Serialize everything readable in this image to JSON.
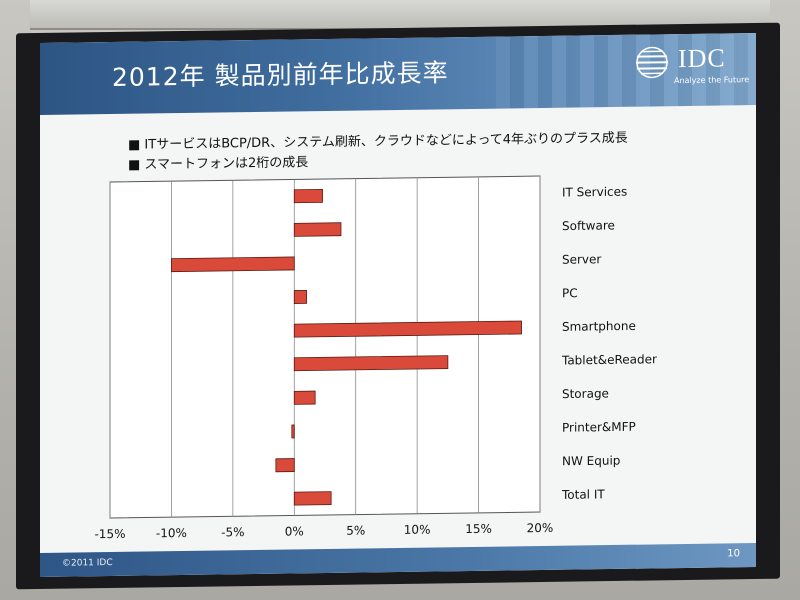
{
  "slide": {
    "title": "2012年 製品別前年比成長率",
    "bullets": [
      "■ ITサービスはBCP/DR、システム刷新、クラウドなどによって4年ぶりのプラス成長",
      "■ スマートフォンは2桁の成長"
    ],
    "logo_text": "IDC",
    "logo_tagline": "Analyze the Future",
    "footer_copyright": "©2011 IDC",
    "page_number": "10"
  },
  "chart_data": {
    "type": "bar",
    "orientation": "horizontal",
    "categories": [
      "IT Services",
      "Software",
      "Server",
      "PC",
      "Smartphone",
      "Tablet&eReader",
      "Storage",
      "Printer&MFP",
      "NW Equip",
      "Total IT"
    ],
    "values": [
      2.3,
      3.8,
      -10.0,
      1.0,
      18.5,
      12.5,
      1.7,
      -0.2,
      -1.5,
      3.0
    ],
    "xlim": [
      -15,
      20
    ],
    "x_ticks": [
      -15,
      -10,
      -5,
      0,
      5,
      10,
      15,
      20
    ],
    "x_tick_labels": [
      "-15%",
      "-10%",
      "-5%",
      "0%",
      "5%",
      "10%",
      "15%",
      "20%"
    ],
    "grid": true,
    "bar_color": "#d94a3a"
  },
  "colors": {
    "header": "#3f6d9e",
    "slide_bg": "#f4f5f5"
  }
}
